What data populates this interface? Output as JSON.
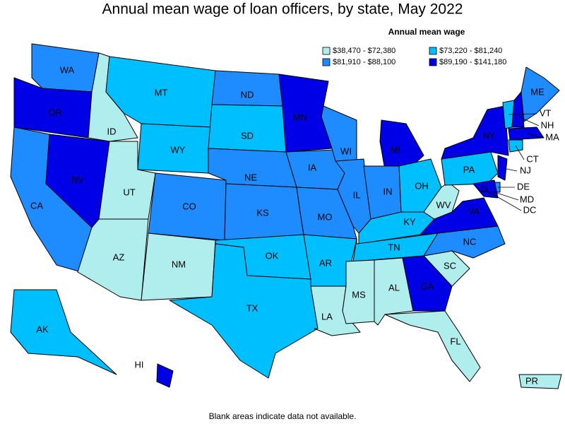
{
  "title": "Annual mean wage of loan officers, by state, May 2022",
  "legend": {
    "title": "Annual mean wage",
    "items": [
      {
        "label": "$38,470 - $72,380",
        "color": "#b0eeee"
      },
      {
        "label": "$73,220 - $81,240",
        "color": "#00bfff"
      },
      {
        "label": "$81,910 - $88,100",
        "color": "#1e8cff"
      },
      {
        "label": "$89,190 - $141,180",
        "color": "#0000e6"
      }
    ]
  },
  "states": [
    {
      "label": "WA",
      "color": "#1e8cff"
    },
    {
      "label": "OR",
      "color": "#0000e6"
    },
    {
      "label": "CA",
      "color": "#1e8cff"
    },
    {
      "label": "NV",
      "color": "#0000e6"
    },
    {
      "label": "ID",
      "color": "#b0eeee"
    },
    {
      "label": "MT",
      "color": "#00bfff"
    },
    {
      "label": "WY",
      "color": "#00bfff"
    },
    {
      "label": "UT",
      "color": "#b0eeee"
    },
    {
      "label": "AZ",
      "color": "#b0eeee"
    },
    {
      "label": "CO",
      "color": "#1e8cff"
    },
    {
      "label": "NM",
      "color": "#b0eeee"
    },
    {
      "label": "ND",
      "color": "#1e8cff"
    },
    {
      "label": "SD",
      "color": "#00bfff"
    },
    {
      "label": "NE",
      "color": "#1e8cff"
    },
    {
      "label": "KS",
      "color": "#1e8cff"
    },
    {
      "label": "OK",
      "color": "#00bfff"
    },
    {
      "label": "TX",
      "color": "#00bfff"
    },
    {
      "label": "MN",
      "color": "#0000e6"
    },
    {
      "label": "IA",
      "color": "#1e8cff"
    },
    {
      "label": "MO",
      "color": "#1e8cff"
    },
    {
      "label": "AR",
      "color": "#00bfff"
    },
    {
      "label": "LA",
      "color": "#b0eeee"
    },
    {
      "label": "WI",
      "color": "#1e8cff"
    },
    {
      "label": "IL",
      "color": "#1e8cff"
    },
    {
      "label": "MI",
      "color": "#0000e6"
    },
    {
      "label": "IN",
      "color": "#1e8cff"
    },
    {
      "label": "OH",
      "color": "#00bfff"
    },
    {
      "label": "KY",
      "color": "#00bfff"
    },
    {
      "label": "TN",
      "color": "#00bfff"
    },
    {
      "label": "MS",
      "color": "#b0eeee"
    },
    {
      "label": "AL",
      "color": "#b0eeee"
    },
    {
      "label": "GA",
      "color": "#0000e6"
    },
    {
      "label": "FL",
      "color": "#b0eeee"
    },
    {
      "label": "SC",
      "color": "#b0eeee"
    },
    {
      "label": "NC",
      "color": "#1e8cff"
    },
    {
      "label": "VA",
      "color": "#0000e6"
    },
    {
      "label": "WV",
      "color": "#b0eeee"
    },
    {
      "label": "PA",
      "color": "#00bfff"
    },
    {
      "label": "NY",
      "color": "#0000e6"
    },
    {
      "label": "VT",
      "color": "#00bfff"
    },
    {
      "label": "NH",
      "color": "#0000e6"
    },
    {
      "label": "ME",
      "color": "#1e8cff"
    },
    {
      "label": "MA",
      "color": "#0000e6"
    },
    {
      "label": "CT",
      "color": "#00bfff"
    },
    {
      "label": "NJ",
      "color": "#0000e6"
    },
    {
      "label": "DE",
      "color": "#1e8cff"
    },
    {
      "label": "MD",
      "color": "#0000e6"
    },
    {
      "label": "DC",
      "color": "#0000e6"
    },
    {
      "label": "AK",
      "color": "#00bfff"
    },
    {
      "label": "HI",
      "color": "#0000e6"
    },
    {
      "label": "PR",
      "color": "#b0eeee"
    }
  ],
  "footnote": "Blank areas indicate data not available."
}
